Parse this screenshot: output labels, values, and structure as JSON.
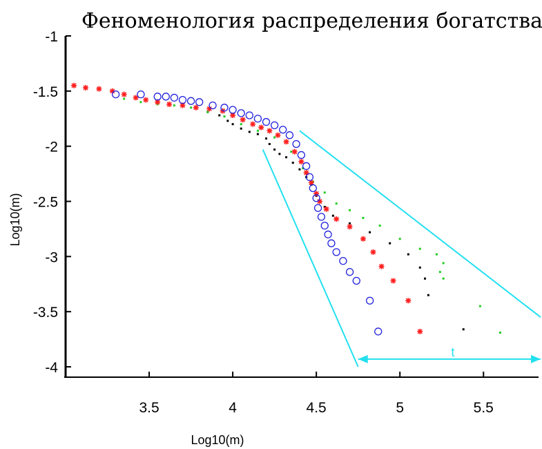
{
  "chart_data": {
    "type": "scatter",
    "title": "Феноменология распределения богатства",
    "xlabel": "Log10(m)",
    "ylabel": "Log10(m)",
    "xlim": [
      3.0,
      5.85
    ],
    "ylim": [
      -4.1,
      -1.0
    ],
    "x_ticks": [
      "3.5",
      "4",
      "4.5",
      "5",
      "5.5"
    ],
    "x_tick_values": [
      3.5,
      4.0,
      4.5,
      5.0,
      5.5
    ],
    "y_ticks": [
      "-1",
      "-1.5",
      "-2",
      "-2.5",
      "-3",
      "-3.5",
      "-4"
    ],
    "y_tick_values": [
      -1.0,
      -1.5,
      -2.0,
      -2.5,
      -3.0,
      -3.5,
      -4.0
    ],
    "grid": false,
    "colors": {
      "black": "#000000",
      "green": "#22cc22",
      "red": "#ff2020",
      "blue": "#2222dd",
      "annotation": "#22e0f0"
    },
    "series": [
      {
        "color": "#000000",
        "marker": "dot",
        "points": [
          [
            3.85,
            -1.69
          ],
          [
            3.92,
            -1.72
          ],
          [
            3.97,
            -1.77
          ],
          [
            4.0,
            -1.8
          ],
          [
            4.05,
            -1.84
          ],
          [
            4.1,
            -1.87
          ],
          [
            4.15,
            -1.89
          ],
          [
            4.2,
            -1.93
          ],
          [
            4.22,
            -1.98
          ],
          [
            4.25,
            -2.03
          ],
          [
            4.28,
            -2.07
          ],
          [
            4.32,
            -2.1
          ],
          [
            4.36,
            -2.15
          ],
          [
            4.4,
            -2.21
          ],
          [
            4.44,
            -2.28
          ],
          [
            4.47,
            -2.35
          ],
          [
            4.5,
            -2.45
          ],
          [
            4.55,
            -2.55
          ],
          [
            4.6,
            -2.63
          ],
          [
            4.7,
            -2.7
          ],
          [
            4.82,
            -2.78
          ],
          [
            4.94,
            -2.88
          ],
          [
            5.05,
            -2.98
          ],
          [
            5.12,
            -3.1
          ],
          [
            5.15,
            -3.2
          ],
          [
            5.17,
            -3.35
          ],
          [
            5.38,
            -3.66
          ]
        ]
      },
      {
        "color": "#22cc22",
        "marker": "dot",
        "points": [
          [
            3.35,
            -1.57
          ],
          [
            3.45,
            -1.6
          ],
          [
            3.55,
            -1.62
          ],
          [
            3.65,
            -1.63
          ],
          [
            3.75,
            -1.65
          ],
          [
            3.85,
            -1.69
          ],
          [
            3.95,
            -1.73
          ],
          [
            4.05,
            -1.8
          ],
          [
            4.15,
            -1.86
          ],
          [
            4.25,
            -1.92
          ],
          [
            4.35,
            -2.05
          ],
          [
            4.42,
            -2.2
          ],
          [
            4.48,
            -2.32
          ],
          [
            4.55,
            -2.42
          ],
          [
            4.62,
            -2.52
          ],
          [
            4.7,
            -2.58
          ],
          [
            4.78,
            -2.65
          ],
          [
            4.88,
            -2.72
          ],
          [
            5.0,
            -2.84
          ],
          [
            5.12,
            -2.93
          ],
          [
            5.22,
            -2.98
          ],
          [
            5.26,
            -3.06
          ],
          [
            5.24,
            -3.14
          ],
          [
            5.26,
            -3.2
          ],
          [
            5.48,
            -3.45
          ],
          [
            5.6,
            -3.69
          ]
        ]
      },
      {
        "color": "#ff2020",
        "marker": "star",
        "points": [
          [
            3.05,
            -1.45
          ],
          [
            3.12,
            -1.47
          ],
          [
            3.2,
            -1.48
          ],
          [
            3.28,
            -1.5
          ],
          [
            3.35,
            -1.53
          ],
          [
            3.42,
            -1.56
          ],
          [
            3.48,
            -1.58
          ],
          [
            3.55,
            -1.6
          ],
          [
            3.62,
            -1.62
          ],
          [
            3.7,
            -1.63
          ],
          [
            3.78,
            -1.65
          ],
          [
            3.86,
            -1.66
          ],
          [
            3.94,
            -1.68
          ],
          [
            4.0,
            -1.72
          ],
          [
            4.06,
            -1.76
          ],
          [
            4.12,
            -1.8
          ],
          [
            4.17,
            -1.83
          ],
          [
            4.22,
            -1.86
          ],
          [
            4.27,
            -1.9
          ],
          [
            4.32,
            -1.96
          ],
          [
            4.37,
            -2.05
          ],
          [
            4.41,
            -2.14
          ],
          [
            4.44,
            -2.24
          ],
          [
            4.47,
            -2.33
          ],
          [
            4.5,
            -2.43
          ],
          [
            4.52,
            -2.5
          ],
          [
            4.56,
            -2.57
          ],
          [
            4.62,
            -2.66
          ],
          [
            4.7,
            -2.73
          ],
          [
            4.78,
            -2.84
          ],
          [
            4.84,
            -2.96
          ],
          [
            4.89,
            -3.09
          ],
          [
            4.96,
            -3.22
          ],
          [
            5.05,
            -3.4
          ],
          [
            5.12,
            -3.68
          ]
        ]
      },
      {
        "color": "#2222dd",
        "marker": "circle",
        "points": [
          [
            3.3,
            -1.53
          ],
          [
            3.45,
            -1.53
          ],
          [
            3.55,
            -1.55
          ],
          [
            3.6,
            -1.55
          ],
          [
            3.65,
            -1.56
          ],
          [
            3.7,
            -1.58
          ],
          [
            3.75,
            -1.59
          ],
          [
            3.8,
            -1.6
          ],
          [
            3.88,
            -1.63
          ],
          [
            3.95,
            -1.65
          ],
          [
            4.0,
            -1.67
          ],
          [
            4.05,
            -1.7
          ],
          [
            4.1,
            -1.72
          ],
          [
            4.15,
            -1.75
          ],
          [
            4.2,
            -1.78
          ],
          [
            4.25,
            -1.81
          ],
          [
            4.3,
            -1.85
          ],
          [
            4.34,
            -1.9
          ],
          [
            4.38,
            -1.98
          ],
          [
            4.41,
            -2.08
          ],
          [
            4.44,
            -2.18
          ],
          [
            4.46,
            -2.28
          ],
          [
            4.48,
            -2.38
          ],
          [
            4.5,
            -2.47
          ],
          [
            4.51,
            -2.56
          ],
          [
            4.53,
            -2.64
          ],
          [
            4.55,
            -2.72
          ],
          [
            4.57,
            -2.8
          ],
          [
            4.59,
            -2.88
          ],
          [
            4.62,
            -2.96
          ],
          [
            4.66,
            -3.04
          ],
          [
            4.7,
            -3.14
          ],
          [
            4.74,
            -3.22
          ],
          [
            4.82,
            -3.4
          ],
          [
            4.87,
            -3.68
          ]
        ]
      }
    ],
    "annotations": {
      "arrow_label": "t",
      "lines": [
        {
          "from": [
            4.18,
            -2.03
          ],
          "to": [
            4.75,
            -4.0
          ]
        },
        {
          "from": [
            4.4,
            -1.86
          ],
          "to": [
            5.85,
            -3.55
          ]
        },
        {
          "from": [
            4.75,
            -3.93
          ],
          "to": [
            5.85,
            -3.93
          ],
          "arrow": true
        }
      ]
    }
  }
}
